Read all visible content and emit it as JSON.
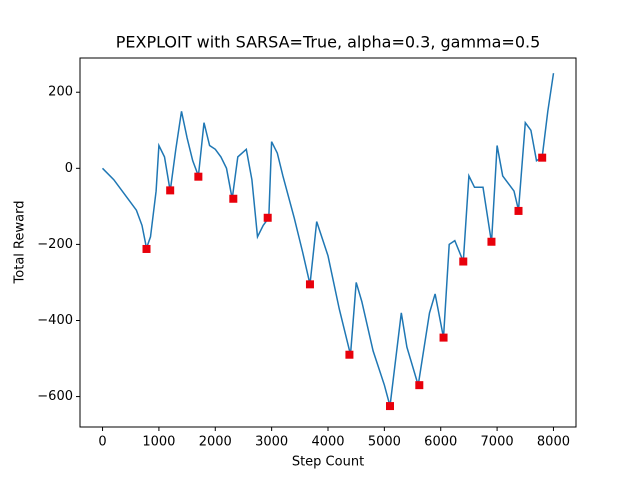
{
  "chart_data": {
    "type": "line",
    "title": "PEXPLOIT with SARSA=True, alpha=0.3, gamma=0.5",
    "x_label": "Step Count",
    "y_label": "Total Reward",
    "x": [
      0,
      200,
      400,
      600,
      700,
      780,
      850,
      950,
      1000,
      1100,
      1200,
      1300,
      1400,
      1500,
      1600,
      1700,
      1800,
      1900,
      2000,
      2100,
      2200,
      2300,
      2400,
      2550,
      2650,
      2750,
      2850,
      2950,
      3000,
      3100,
      3200,
      3400,
      3550,
      3680,
      3800,
      4000,
      4200,
      4400,
      4500,
      4600,
      4800,
      5000,
      5100,
      5300,
      5400,
      5600,
      5800,
      5900,
      6050,
      6150,
      6250,
      6400,
      6500,
      6600,
      6750,
      6900,
      7000,
      7100,
      7300,
      7380,
      7500,
      7600,
      7700,
      7800,
      7900,
      8000
    ],
    "values": [
      0,
      -30,
      -70,
      -110,
      -150,
      -210,
      -180,
      -60,
      60,
      30,
      -60,
      50,
      150,
      80,
      20,
      -20,
      120,
      60,
      50,
      30,
      0,
      -80,
      30,
      50,
      -30,
      -180,
      -150,
      -130,
      70,
      40,
      -20,
      -130,
      -220,
      -305,
      -140,
      -230,
      -370,
      -490,
      -300,
      -350,
      -480,
      -570,
      -625,
      -380,
      -470,
      -570,
      -380,
      -330,
      -445,
      -200,
      -190,
      -245,
      -20,
      -50,
      -50,
      -195,
      60,
      -20,
      -60,
      -110,
      120,
      100,
      20,
      30,
      150,
      250
    ],
    "color": "#1f77b4",
    "markers": {
      "x": [
        780,
        1200,
        1700,
        2320,
        2930,
        3680,
        4380,
        5100,
        5620,
        6050,
        6400,
        6900,
        7380,
        7800
      ],
      "values": [
        -212,
        -58,
        -22,
        -80,
        -130,
        -305,
        -490,
        -625,
        -570,
        -445,
        -245,
        -193,
        -112,
        28
      ],
      "color": "#e8000b"
    },
    "xlim": [
      -400,
      8400
    ],
    "ylim": [
      -680,
      290
    ],
    "xticks": [
      0,
      1000,
      2000,
      3000,
      4000,
      5000,
      6000,
      7000,
      8000
    ],
    "yticks": [
      {
        "value": -600,
        "label": "−600"
      },
      {
        "value": -400,
        "label": "−400"
      },
      {
        "value": -200,
        "label": "−200"
      },
      0,
      200
    ]
  }
}
